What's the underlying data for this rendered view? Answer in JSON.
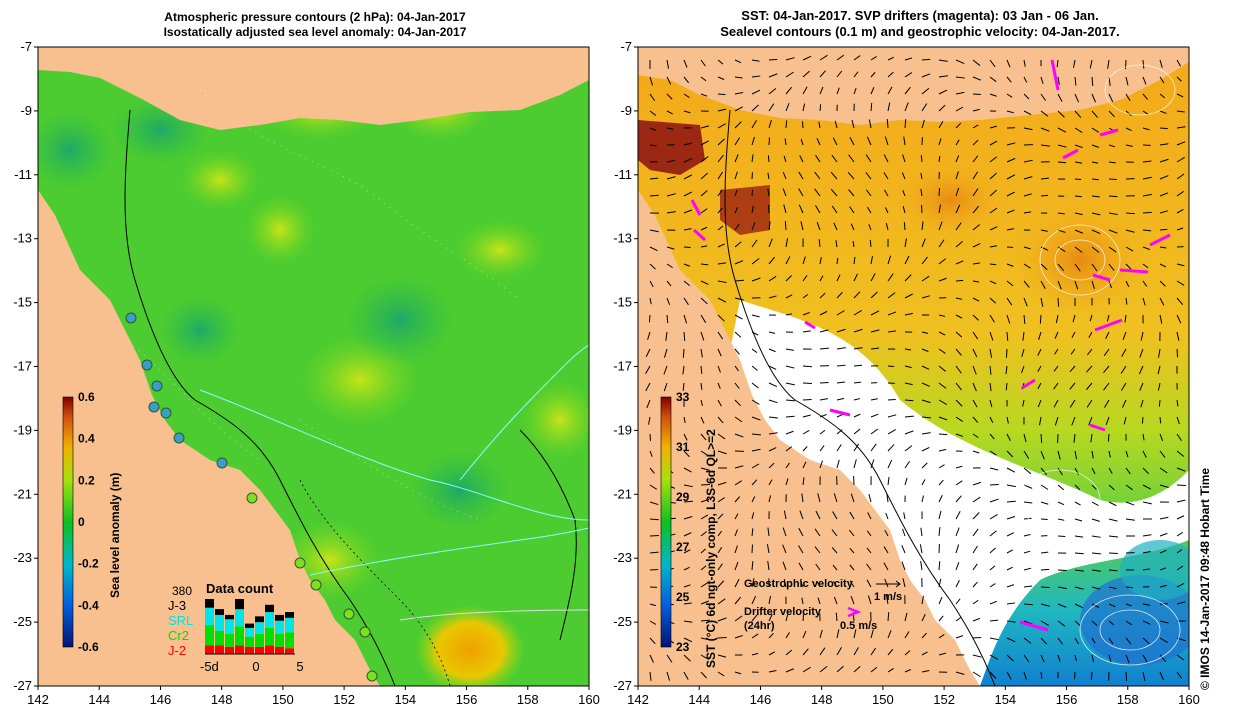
{
  "left_panel": {
    "title_line1": "Atmospheric pressure contours (2 hPa): 04-Jan-2017",
    "title_line2": "Isostatically adjusted sea level anomaly: 04-Jan-2017",
    "y_ticks": [
      "-7",
      "-9",
      "-11",
      "-13",
      "-15",
      "-17",
      "-19",
      "-21",
      "-23",
      "-25",
      "-27"
    ],
    "x_ticks": [
      "142",
      "144",
      "146",
      "148",
      "150",
      "152",
      "154",
      "156",
      "158",
      "160"
    ],
    "colorbar_label": "Sea level anomaly (m)",
    "colorbar_ticks": [
      "0.6",
      "0.4",
      "0.2",
      "0",
      "-0.2",
      "-0.4",
      "-0.6"
    ],
    "colorbar_range": [
      -0.6,
      0.6
    ],
    "data_count": {
      "title": "Data count",
      "max_label": "380",
      "missions": [
        {
          "name": "J-3",
          "color": "#000000"
        },
        {
          "name": "SRL",
          "color": "#00e5e5"
        },
        {
          "name": "Cr2",
          "color": "#00e000"
        },
        {
          "name": "J-2",
          "color": "#ff0000"
        }
      ],
      "x_ticks": [
        "-5d",
        "0",
        "5"
      ],
      "daily_stacks": [
        {
          "j2": 60,
          "cr2": 140,
          "srl": 120,
          "j3": 60
        },
        {
          "j2": 60,
          "cr2": 100,
          "srl": 110,
          "j3": 40
        },
        {
          "j2": 50,
          "cr2": 90,
          "srl": 100,
          "j3": 30
        },
        {
          "j2": 60,
          "cr2": 130,
          "srl": 120,
          "j3": 70
        },
        {
          "j2": 50,
          "cr2": 70,
          "srl": 60,
          "j3": 30
        },
        {
          "j2": 50,
          "cr2": 90,
          "srl": 80,
          "j3": 40
        },
        {
          "j2": 60,
          "cr2": 120,
          "srl": 110,
          "j3": 50
        },
        {
          "j2": 50,
          "cr2": 90,
          "srl": 90,
          "j3": 40
        },
        {
          "j2": 40,
          "cr2": 110,
          "srl": 100,
          "j3": 40
        }
      ]
    }
  },
  "right_panel": {
    "title_line1": "SST: 04-Jan-2017. SVP drifters (magenta): 03 Jan - 06 Jan.",
    "title_line2": "Sealevel contours (0.1 m) and geostrophic velocity: 04-Jan-2017.",
    "y_ticks": [
      "-7",
      "-9",
      "-11",
      "-13",
      "-15",
      "-17",
      "-19",
      "-21",
      "-23",
      "-25",
      "-27"
    ],
    "x_ticks": [
      "142",
      "144",
      "146",
      "148",
      "150",
      "152",
      "154",
      "156",
      "158",
      "160"
    ],
    "colorbar_label": "SST (°C) 6d ngt-only comp, L3S-6d QL>=2",
    "colorbar_ticks": [
      "33",
      "31",
      "29",
      "27",
      "25",
      "23"
    ],
    "colorbar_range": [
      23,
      33
    ],
    "geostrophic_label": "Geostrophic velocity",
    "geostrophic_scale": "1 m/s",
    "drifter_label": "Drifter velocity",
    "drifter_sub": "(24hr)",
    "drifter_scale": "0.5 m/s",
    "credit": "© IMOS 14-Jan-2017 09:48 Hobart Time"
  },
  "colors": {
    "land": "#f7c08e",
    "ocean_base_left": "#5ad42a",
    "ocean_base_right": "#f4b21c",
    "drifter": "#ff00ff",
    "coastal_ring": "#38b0a8"
  }
}
